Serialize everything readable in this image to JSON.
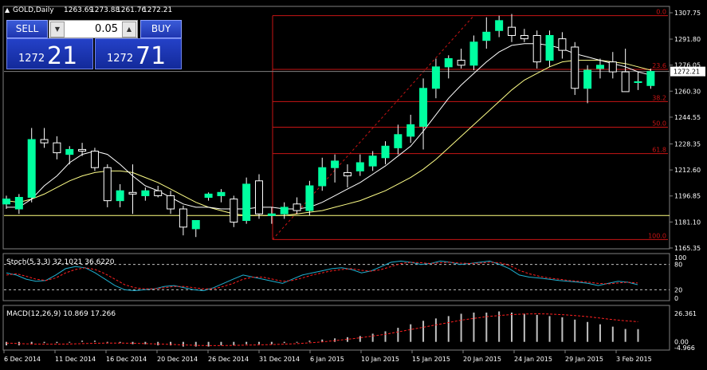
{
  "header": {
    "symbol": "GOLD,Daily",
    "open": "1263.69",
    "high": "1273.88",
    "low": "1261.76",
    "close": "1272.21"
  },
  "trade_panel": {
    "sell_label": "SELL",
    "buy_label": "BUY",
    "lot": "0.05",
    "sell_big": "1272",
    "sell_small": "21",
    "buy_big": "1272",
    "buy_small": "71",
    "arrow_down": "▼",
    "arrow_up": "▲"
  },
  "colors": {
    "bull": "#00ffa0",
    "bear": "#000000",
    "bear_outline": "#ffffff",
    "fib": "#c81414",
    "ma_fast": "#ffffff",
    "ma_slow": "#ffff88",
    "stoch_main": "#20b0d0",
    "stoch_signal": "#ff2020"
  },
  "chart_data": {
    "type": "candlestick",
    "price_scale": [
      "1307.75",
      "1291.80",
      "1276.05",
      "1260.30",
      "1244.55",
      "1228.35",
      "1212.60",
      "1196.85",
      "1181.10",
      "1165.35"
    ],
    "current_price": "1272.21",
    "ylim": [
      1165.35,
      1307.75
    ],
    "x_labels": [
      "6 Dec 2014",
      "11 Dec 2014",
      "16 Dec 2014",
      "20 Dec 2014",
      "26 Dec 2014",
      "31 Dec 2014",
      "6 Jan 2015",
      "10 Jan 2015",
      "15 Jan 2015",
      "20 Jan 2015",
      "24 Jan 2015",
      "29 Jan 2015",
      "3 Feb 2015"
    ],
    "candles": [
      {
        "o": 1192,
        "h": 1197,
        "l": 1189,
        "c": 1195
      },
      {
        "o": 1189,
        "h": 1198,
        "l": 1186,
        "c": 1196
      },
      {
        "o": 1196,
        "h": 1238,
        "l": 1193,
        "c": 1231
      },
      {
        "o": 1231,
        "h": 1238,
        "l": 1226,
        "c": 1229
      },
      {
        "o": 1229,
        "h": 1233,
        "l": 1219,
        "c": 1223
      },
      {
        "o": 1222,
        "h": 1227,
        "l": 1216,
        "c": 1225
      },
      {
        "o": 1225,
        "h": 1229,
        "l": 1221,
        "c": 1224
      },
      {
        "o": 1224,
        "h": 1226,
        "l": 1212,
        "c": 1214
      },
      {
        "o": 1214,
        "h": 1216,
        "l": 1190,
        "c": 1194
      },
      {
        "o": 1194,
        "h": 1204,
        "l": 1190,
        "c": 1200
      },
      {
        "o": 1199,
        "h": 1216,
        "l": 1186,
        "c": 1198
      },
      {
        "o": 1197,
        "h": 1202,
        "l": 1194,
        "c": 1200
      },
      {
        "o": 1200,
        "h": 1203,
        "l": 1196,
        "c": 1197
      },
      {
        "o": 1197,
        "h": 1200,
        "l": 1186,
        "c": 1189
      },
      {
        "o": 1189,
        "h": 1191,
        "l": 1173,
        "c": 1178
      },
      {
        "o": 1177,
        "h": 1182,
        "l": 1172,
        "c": 1182
      },
      {
        "o": 1196,
        "h": 1199,
        "l": 1194,
        "c": 1198
      },
      {
        "o": 1197,
        "h": 1201,
        "l": 1193,
        "c": 1199
      },
      {
        "o": 1195,
        "h": 1197,
        "l": 1178,
        "c": 1181
      },
      {
        "o": 1182,
        "h": 1208,
        "l": 1180,
        "c": 1204
      },
      {
        "o": 1206,
        "h": 1210,
        "l": 1183,
        "c": 1186
      },
      {
        "o": 1185,
        "h": 1190,
        "l": 1180,
        "c": 1186
      },
      {
        "o": 1186,
        "h": 1193,
        "l": 1183,
        "c": 1190
      },
      {
        "o": 1192,
        "h": 1196,
        "l": 1186,
        "c": 1188
      },
      {
        "o": 1188,
        "h": 1206,
        "l": 1185,
        "c": 1203
      },
      {
        "o": 1203,
        "h": 1220,
        "l": 1200,
        "c": 1214
      },
      {
        "o": 1214,
        "h": 1222,
        "l": 1205,
        "c": 1218
      },
      {
        "o": 1211,
        "h": 1216,
        "l": 1202,
        "c": 1209
      },
      {
        "o": 1212,
        "h": 1222,
        "l": 1209,
        "c": 1217
      },
      {
        "o": 1215,
        "h": 1224,
        "l": 1212,
        "c": 1221
      },
      {
        "o": 1220,
        "h": 1230,
        "l": 1216,
        "c": 1227
      },
      {
        "o": 1226,
        "h": 1240,
        "l": 1222,
        "c": 1234
      },
      {
        "o": 1233,
        "h": 1246,
        "l": 1229,
        "c": 1240
      },
      {
        "o": 1239,
        "h": 1268,
        "l": 1225,
        "c": 1262
      },
      {
        "o": 1262,
        "h": 1280,
        "l": 1256,
        "c": 1275
      },
      {
        "o": 1275,
        "h": 1282,
        "l": 1268,
        "c": 1280
      },
      {
        "o": 1279,
        "h": 1286,
        "l": 1274,
        "c": 1276
      },
      {
        "o": 1276,
        "h": 1294,
        "l": 1273,
        "c": 1290
      },
      {
        "o": 1291,
        "h": 1305,
        "l": 1286,
        "c": 1296
      },
      {
        "o": 1297,
        "h": 1306,
        "l": 1293,
        "c": 1303
      },
      {
        "o": 1299,
        "h": 1307,
        "l": 1290,
        "c": 1294
      },
      {
        "o": 1294,
        "h": 1298,
        "l": 1290,
        "c": 1292
      },
      {
        "o": 1294,
        "h": 1297,
        "l": 1274,
        "c": 1278
      },
      {
        "o": 1279,
        "h": 1297,
        "l": 1275,
        "c": 1294
      },
      {
        "o": 1292,
        "h": 1296,
        "l": 1280,
        "c": 1285
      },
      {
        "o": 1287,
        "h": 1290,
        "l": 1258,
        "c": 1262
      },
      {
        "o": 1262,
        "h": 1276,
        "l": 1253,
        "c": 1273
      },
      {
        "o": 1274,
        "h": 1280,
        "l": 1268,
        "c": 1276
      },
      {
        "o": 1278,
        "h": 1284,
        "l": 1268,
        "c": 1272
      },
      {
        "o": 1272,
        "h": 1286,
        "l": 1261,
        "c": 1260
      },
      {
        "o": 1266,
        "h": 1272,
        "l": 1261,
        "c": 1266
      },
      {
        "o": 1263.69,
        "h": 1273.88,
        "l": 1261.76,
        "c": 1272.21
      }
    ],
    "ma_fast": [
      1190,
      1190,
      1195,
      1203,
      1209,
      1217,
      1222,
      1224,
      1222,
      1216,
      1209,
      1203,
      1200,
      1196,
      1192,
      1190,
      1190,
      1189,
      1189,
      1189,
      1190,
      1190,
      1189,
      1189,
      1190,
      1193,
      1197,
      1201,
      1205,
      1210,
      1215,
      1221,
      1227,
      1236,
      1246,
      1256,
      1264,
      1271,
      1278,
      1284,
      1288,
      1289,
      1289,
      1288,
      1286,
      1283,
      1281,
      1279,
      1277,
      1275,
      1272,
      1270
    ],
    "ma_slow": [
      1194,
      1193,
      1195,
      1198,
      1202,
      1206,
      1209,
      1211,
      1212,
      1212,
      1211,
      1208,
      1205,
      1201,
      1197,
      1193,
      1190,
      1188,
      1186,
      1185,
      1185,
      1185,
      1185,
      1186,
      1187,
      1188,
      1190,
      1192,
      1194,
      1197,
      1200,
      1204,
      1208,
      1213,
      1219,
      1226,
      1233,
      1240,
      1247,
      1254,
      1261,
      1267,
      1271,
      1275,
      1278,
      1279,
      1279,
      1279,
      1278,
      1277,
      1275,
      1273
    ],
    "fibonacci": {
      "levels": [
        {
          "label": "0.0",
          "price": 1306
        },
        {
          "label": "23.6",
          "price": 1273.5
        },
        {
          "label": "38.2",
          "price": 1254
        },
        {
          "label": "50.0",
          "price": 1238.5
        },
        {
          "label": "61.8",
          "price": 1222.5
        },
        {
          "label": "100.0",
          "price": 1170.5
        }
      ]
    },
    "horizontal_line": 1185,
    "stochastic": {
      "label": "Stoch(5,3,3) 32.1021 36.6220",
      "scale": [
        "100",
        "80",
        "20",
        "0"
      ],
      "ylim": [
        0,
        100
      ],
      "levels": [
        80,
        20
      ],
      "main": [
        60,
        55,
        45,
        40,
        42,
        55,
        70,
        75,
        72,
        60,
        45,
        30,
        20,
        18,
        20,
        22,
        28,
        30,
        25,
        20,
        18,
        25,
        35,
        45,
        55,
        50,
        45,
        40,
        35,
        45,
        55,
        60,
        65,
        70,
        72,
        68,
        60,
        65,
        75,
        85,
        88,
        85,
        80,
        82,
        88,
        85,
        80,
        82,
        85,
        88,
        80,
        70,
        55,
        50,
        48,
        45,
        42,
        40,
        38,
        35,
        30,
        35,
        40,
        38,
        32
      ],
      "signal": [
        55,
        58,
        52,
        45,
        42,
        48,
        60,
        68,
        72,
        68,
        58,
        45,
        32,
        25,
        22,
        22,
        25,
        28,
        28,
        25,
        22,
        22,
        28,
        35,
        45,
        50,
        50,
        45,
        40,
        42,
        48,
        55,
        60,
        65,
        68,
        70,
        66,
        64,
        68,
        75,
        82,
        85,
        84,
        82,
        84,
        85,
        83,
        82,
        83,
        85,
        84,
        78,
        66,
        58,
        52,
        48,
        45,
        42,
        40,
        38,
        35,
        34,
        36,
        38,
        36
      ]
    },
    "macd": {
      "label": "MACD(12,26,9) 10.869 17.266",
      "scale": [
        "26.361",
        "0.00",
        "-4.966"
      ],
      "ylim": [
        -4.966,
        26.361
      ],
      "histogram": [
        -3,
        -3,
        -2,
        -1,
        -1,
        0,
        1,
        1,
        0,
        -1,
        -2,
        -2,
        -3,
        -3,
        -4,
        -4,
        -4,
        -3,
        -3,
        -2,
        -2,
        -2,
        -1,
        0,
        1,
        2,
        3,
        4,
        5,
        7,
        9,
        12,
        15,
        18,
        20,
        22,
        24,
        25,
        25,
        26,
        25,
        24,
        23,
        22,
        21,
        19,
        17,
        15,
        13,
        11,
        10.869
      ],
      "signal": [
        -1,
        -1.5,
        -1.8,
        -2,
        -2,
        -1.8,
        -1.5,
        -1.2,
        -1,
        -1,
        -1.2,
        -1.5,
        -1.8,
        -2.2,
        -2.6,
        -3,
        -3.2,
        -3.2,
        -3,
        -2.8,
        -2.6,
        -2.3,
        -2,
        -1.5,
        -0.8,
        0,
        1,
        2.2,
        3.5,
        5,
        6.5,
        8.5,
        10.5,
        12.5,
        14.5,
        16.5,
        18.5,
        20,
        21.5,
        22.5,
        23.3,
        23.8,
        24,
        23.8,
        23.2,
        22.5,
        21.5,
        20.3,
        19,
        18,
        17.266
      ]
    }
  }
}
